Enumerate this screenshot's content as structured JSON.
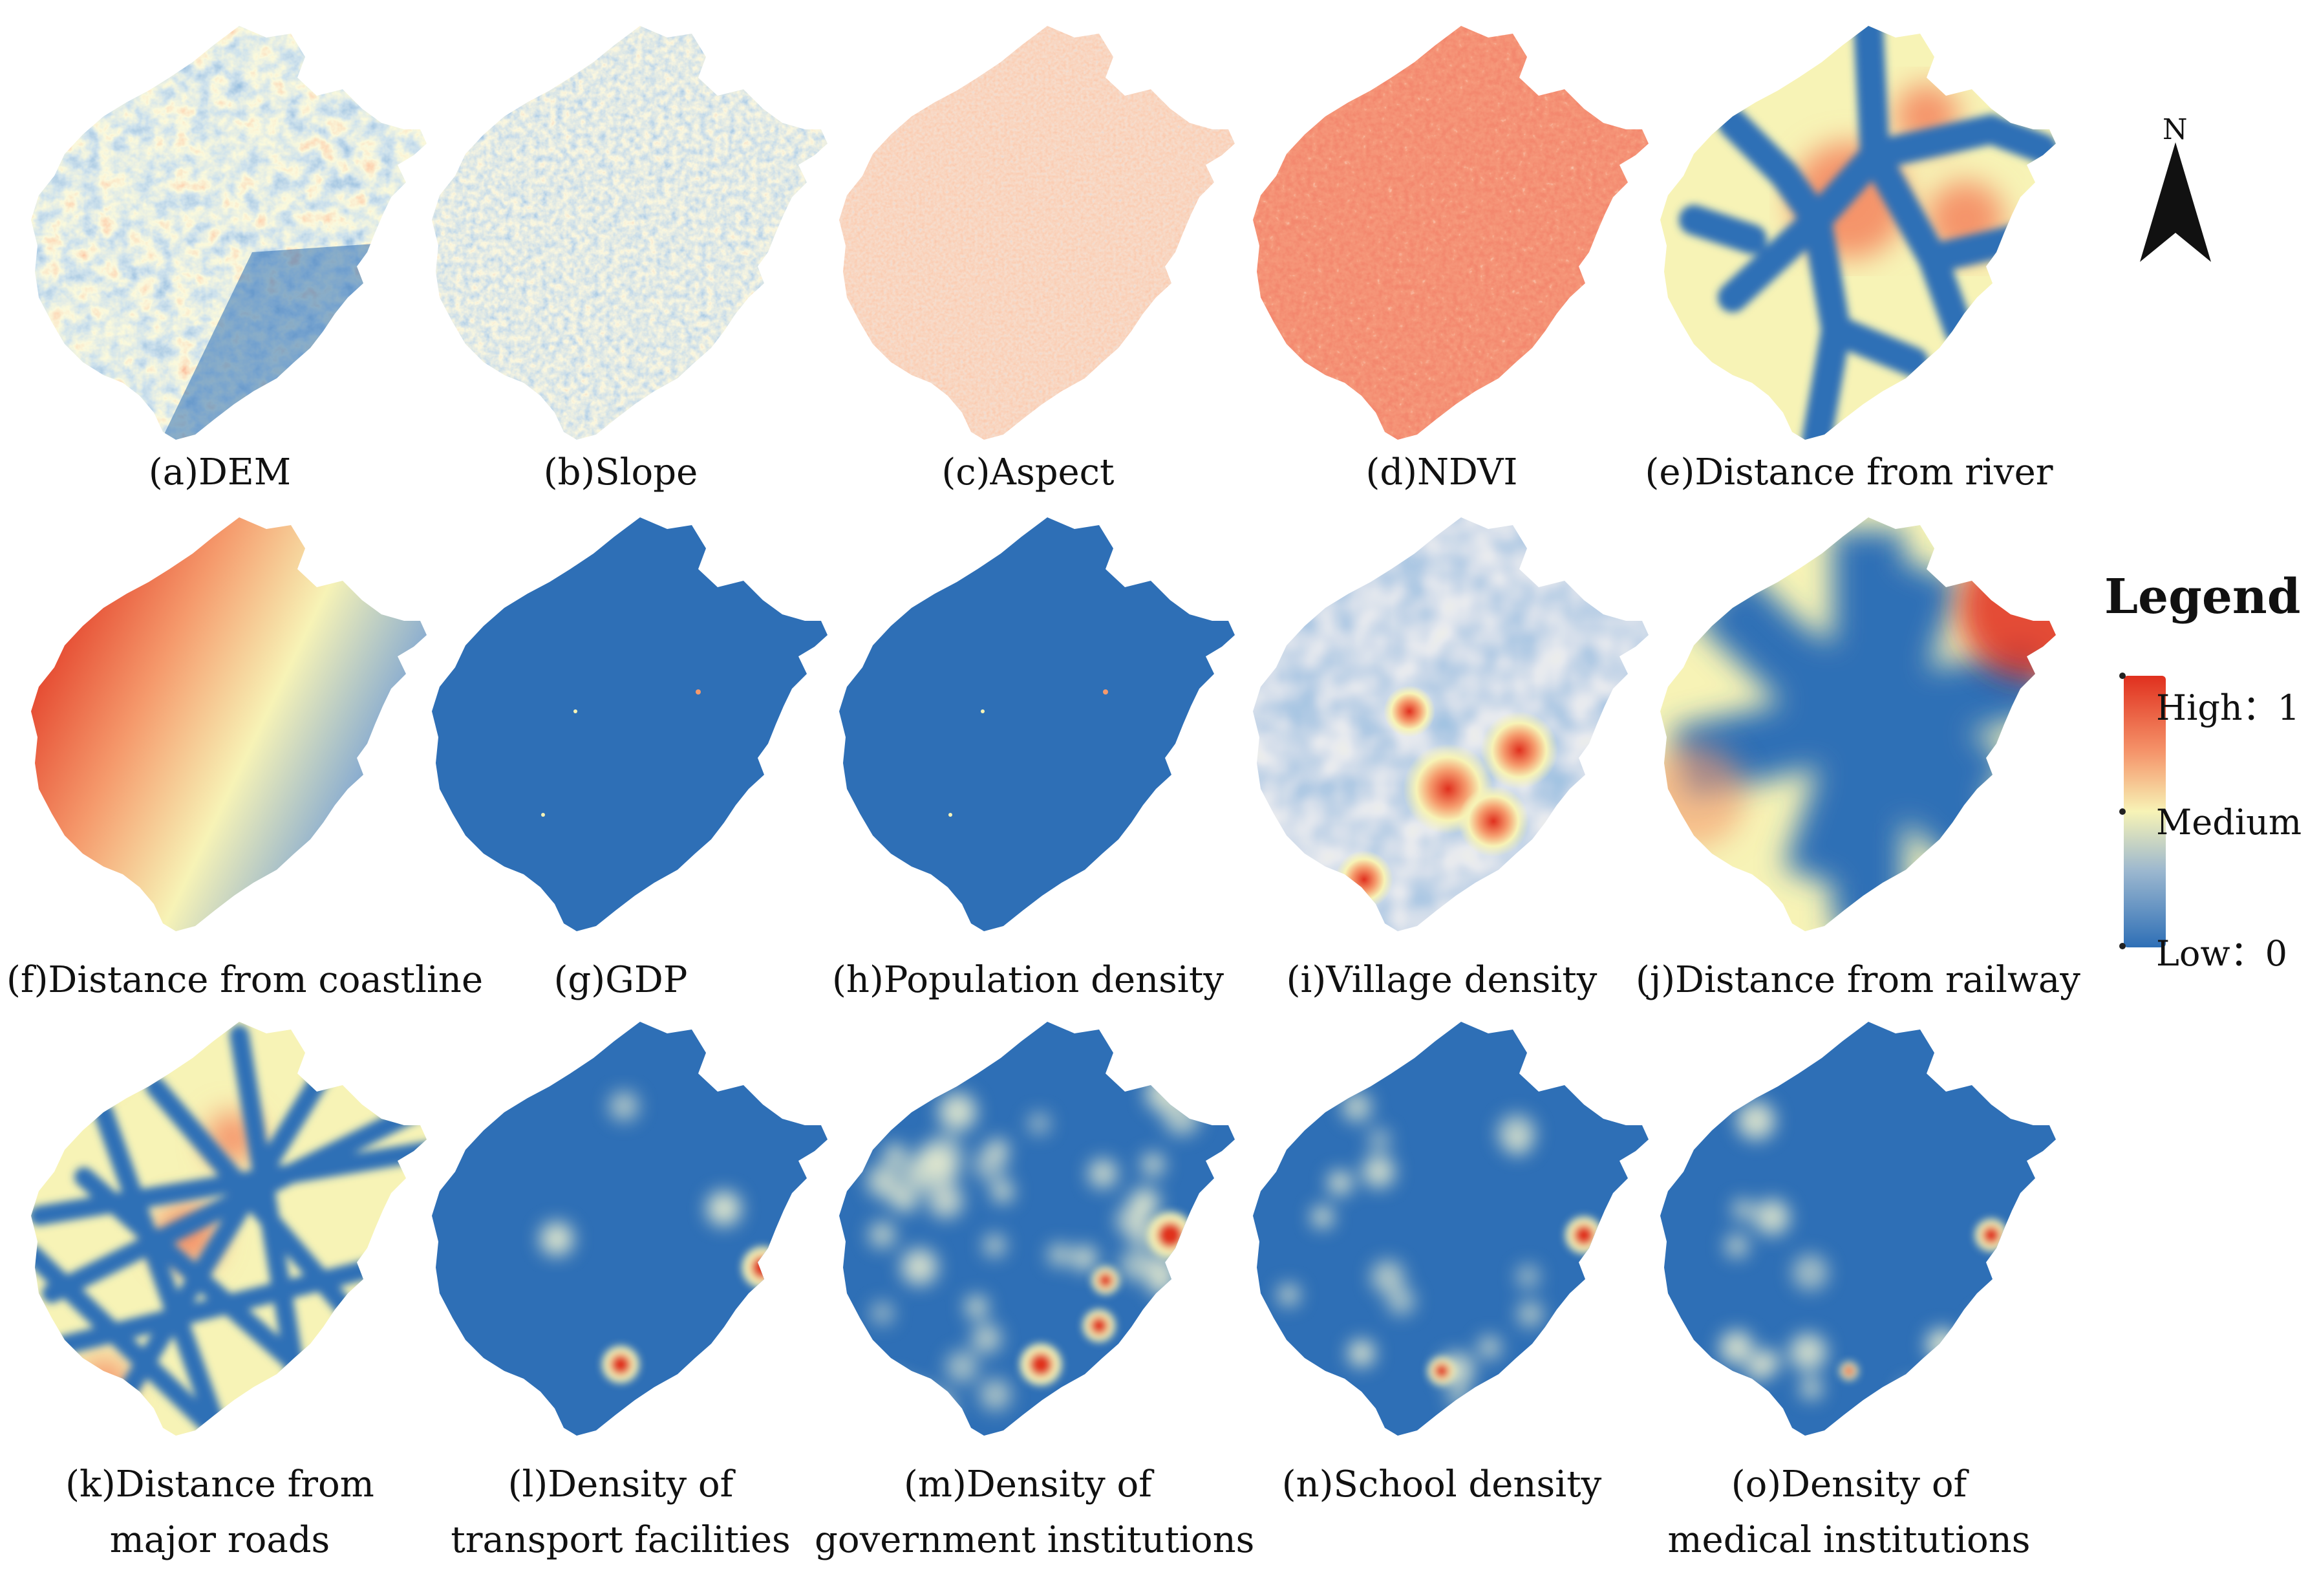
{
  "panels": [
    {
      "label": "(a)DEM",
      "style": "dem"
    },
    {
      "label": "(b)Slope",
      "style": "slope"
    },
    {
      "label": "(c)Aspect",
      "style": "aspect"
    },
    {
      "label": "(d)NDVI",
      "style": "ndvi"
    },
    {
      "label": "(e)Distance from river",
      "style": "river"
    },
    {
      "label": "(f)Distance from coastline",
      "style": "coast"
    },
    {
      "label": "(g)GDP",
      "style": "blue"
    },
    {
      "label": "(h)Population density",
      "style": "blue"
    },
    {
      "label": "(i)Village density",
      "style": "village"
    },
    {
      "label": "(j)Distance from railway",
      "style": "railway"
    },
    {
      "label": "(k)Distance from major roads",
      "line1": "(k)Distance from",
      "line2": "major roads",
      "style": "roads"
    },
    {
      "label": "(l)Density of transport facilities",
      "line1": "(l)Density of",
      "line2": "transport facilities",
      "style": "transport"
    },
    {
      "label": "(m)Density of government institutions",
      "line1": "(m)Density of",
      "line2": "government institutions",
      "style": "gov"
    },
    {
      "label": "(n)School density",
      "style": "school"
    },
    {
      "label": "(o)Density of medical institutions",
      "line1": "(o)Density of",
      "line2": "medical institutions",
      "style": "medical"
    }
  ],
  "legend": {
    "title": "Legend",
    "high": "High：1",
    "medium": "Medium",
    "low": "Low：0"
  },
  "north_arrow": {
    "label": "N"
  },
  "colors": {
    "high": "#e0301e",
    "medium": "#f7f3b6",
    "low": "#2e6fb6"
  }
}
